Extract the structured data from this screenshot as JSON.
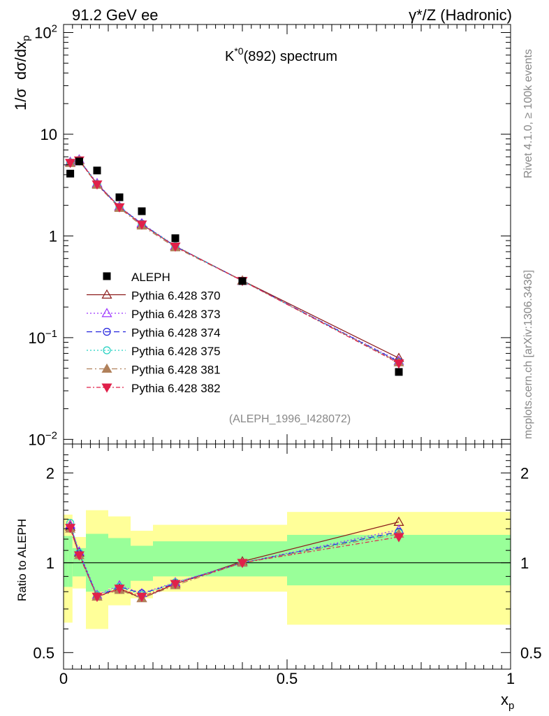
{
  "header": {
    "left": "91.2 GeV ee",
    "right": "γ*/Z (Hadronic)"
  },
  "side_text": {
    "rivet": "Rivet 4.1.0, ≥ 100k events",
    "mcplots": "mcplots.cern.ch [arXiv:1306.3436]"
  },
  "colors": {
    "aleph": "#000000",
    "p370": "#8b1a1a",
    "p373": "#9b30ff",
    "p374": "#2222dd",
    "p375": "#20d0c0",
    "p381": "#b0805a",
    "p382": "#e0204a",
    "band_outer": "#ffff99",
    "band_inner": "#99ff99"
  },
  "chart_data": [
    {
      "type": "line",
      "title": "K*0(892) spectrum",
      "title_main": "K",
      "title_sup": "*0",
      "title_rest": "(892) spectrum",
      "ylabel": "1/σ  dσ/dx_p",
      "ylabel_a": "1/σ",
      "ylabel_b": "dσ/dx",
      "ylabel_sub": "p",
      "xlim": [
        0,
        1
      ],
      "ylim": [
        0.009,
        120
      ],
      "yscale": "log",
      "ytick_labels": [
        "10⁻²",
        "10⁻¹",
        "1",
        "10",
        "10²"
      ],
      "y_ticks": [
        {
          "value": 0.01,
          "base": "10",
          "exp": "−2"
        },
        {
          "value": 0.1,
          "base": "10",
          "exp": "−1"
        },
        {
          "value": 1,
          "base": "1",
          "exp": ""
        },
        {
          "value": 10,
          "base": "10",
          "exp": ""
        },
        {
          "value": 100,
          "base": "10",
          "exp": "2"
        }
      ],
      "watermark": "(ALEPH_1996_I428072)",
      "x": [
        0.015,
        0.035,
        0.075,
        0.125,
        0.175,
        0.25,
        0.4,
        0.75
      ],
      "aleph": {
        "name": "ALEPH",
        "values": [
          4.1,
          5.4,
          4.4,
          2.4,
          1.75,
          0.95,
          0.36,
          0.046
        ]
      },
      "series": [
        {
          "id": "p370",
          "name": "Pythia 6.428 370",
          "marker": "tri-up-open",
          "dash": "",
          "values": [
            5.3,
            5.6,
            3.25,
            1.93,
            1.3,
            0.79,
            0.364,
            0.063
          ]
        },
        {
          "id": "p373",
          "name": "Pythia 6.428 373",
          "marker": "tri-up-open",
          "dash": "2,3",
          "values": [
            5.35,
            5.65,
            3.3,
            1.95,
            1.33,
            0.8,
            0.36,
            0.059
          ]
        },
        {
          "id": "p374",
          "name": "Pythia 6.428 374",
          "marker": "circle-open",
          "dash": "8,5",
          "values": [
            5.2,
            5.55,
            3.22,
            1.92,
            1.32,
            0.79,
            0.362,
            0.058
          ]
        },
        {
          "id": "p375",
          "name": "Pythia 6.428 375",
          "marker": "circle-open",
          "dash": "2,3",
          "values": [
            5.3,
            5.6,
            3.25,
            1.94,
            1.31,
            0.8,
            0.361,
            0.057
          ]
        },
        {
          "id": "p381",
          "name": "Pythia 6.428 381",
          "marker": "tri-up-filled",
          "dash": "8,4,2,4",
          "values": [
            5.2,
            5.5,
            3.18,
            1.88,
            1.26,
            0.77,
            0.362,
            0.057
          ]
        },
        {
          "id": "p382",
          "name": "Pythia 6.428 382",
          "marker": "tri-down-filled",
          "dash": "6,3,2,3",
          "values": [
            5.25,
            5.55,
            3.22,
            1.92,
            1.3,
            0.79,
            0.362,
            0.056
          ]
        }
      ]
    },
    {
      "type": "line",
      "ylabel": "Ratio to ALEPH",
      "xlabel": "x_p",
      "xlabel_a": "x",
      "xlabel_sub": "p",
      "xlim": [
        0,
        1
      ],
      "ylim": [
        0.44,
        2.5
      ],
      "yscale": "log",
      "y_ticks": [
        {
          "value": 0.5,
          "label": "0.5"
        },
        {
          "value": 1,
          "label": "1"
        },
        {
          "value": 2,
          "label": "2"
        }
      ],
      "x_ticks": [
        {
          "value": 0,
          "label": "0"
        },
        {
          "value": 0.5,
          "label": "0.5"
        },
        {
          "value": 1,
          "label": "1"
        }
      ],
      "bands": [
        {
          "x0": 0.0,
          "x1": 0.01,
          "outer": [
            0.63,
            1.45
          ],
          "inner": [
            0.83,
            1.23
          ]
        },
        {
          "x0": 0.01,
          "x1": 0.02,
          "outer": [
            0.63,
            1.45
          ],
          "inner": [
            0.83,
            1.23
          ]
        },
        {
          "x0": 0.02,
          "x1": 0.05,
          "outer": [
            0.82,
            1.22
          ],
          "inner": [
            0.9,
            1.12
          ]
        },
        {
          "x0": 0.05,
          "x1": 0.1,
          "outer": [
            0.6,
            1.5
          ],
          "inner": [
            0.8,
            1.25
          ]
        },
        {
          "x0": 0.1,
          "x1": 0.15,
          "outer": [
            0.72,
            1.43
          ],
          "inner": [
            0.82,
            1.21
          ]
        },
        {
          "x0": 0.15,
          "x1": 0.2,
          "outer": [
            0.76,
            1.28
          ],
          "inner": [
            0.87,
            1.14
          ]
        },
        {
          "x0": 0.2,
          "x1": 0.3,
          "outer": [
            0.8,
            1.34
          ],
          "inner": [
            0.9,
            1.18
          ]
        },
        {
          "x0": 0.3,
          "x1": 0.5,
          "outer": [
            0.8,
            1.34
          ],
          "inner": [
            0.9,
            1.18
          ]
        },
        {
          "x0": 0.5,
          "x1": 1.0,
          "outer": [
            0.62,
            1.48
          ],
          "inner": [
            0.84,
            1.24
          ]
        }
      ],
      "series": [
        {
          "id": "p370",
          "values": [
            1.32,
            1.08,
            0.77,
            0.82,
            0.76,
            0.85,
            1.01,
            1.37
          ]
        },
        {
          "id": "p373",
          "values": [
            1.34,
            1.09,
            0.78,
            0.84,
            0.79,
            0.86,
            1.0,
            1.29
          ]
        },
        {
          "id": "p374",
          "values": [
            1.3,
            1.07,
            0.77,
            0.83,
            0.79,
            0.85,
            1.0,
            1.27
          ]
        },
        {
          "id": "p375",
          "values": [
            1.36,
            1.08,
            0.78,
            0.83,
            0.78,
            0.86,
            1.0,
            1.26
          ]
        },
        {
          "id": "p381",
          "values": [
            1.3,
            1.06,
            0.77,
            0.81,
            0.76,
            0.84,
            1.0,
            1.25
          ]
        },
        {
          "id": "p382",
          "values": [
            1.31,
            1.06,
            0.77,
            0.82,
            0.77,
            0.85,
            1.0,
            1.22
          ]
        }
      ]
    }
  ]
}
